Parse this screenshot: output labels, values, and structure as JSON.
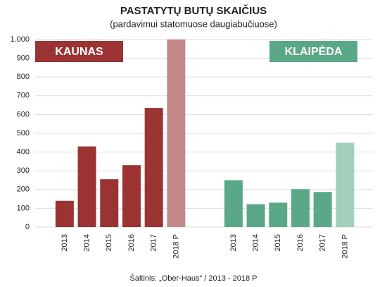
{
  "chart_data": {
    "type": "bar",
    "title": "PASTATYTŲ BUTŲ SKAIČIUS",
    "subtitle": "(pardavimui statomuose daugiabučiuose)",
    "source": "Šaltinis: „Ober-Haus“ / 2013 - 2018 P",
    "ylim": [
      0,
      1000
    ],
    "yticks": [
      0,
      100,
      200,
      300,
      400,
      500,
      600,
      700,
      800,
      900,
      {
        "value": 1000,
        "label": "1.000"
      }
    ],
    "grid": true,
    "groups": [
      {
        "name": "KAUNAS",
        "color": "#9b3333",
        "categories": [
          "2013",
          "2014",
          "2015",
          "2016",
          "2017",
          "2018 P"
        ],
        "values": [
          140,
          430,
          255,
          330,
          635,
          1000
        ],
        "colors": [
          "#9b3333",
          "#9b3333",
          "#9b3333",
          "#9b3333",
          "#9b3333",
          "#c48a8a"
        ]
      },
      {
        "name": "KLAIPĖDA",
        "color": "#5aa887",
        "categories": [
          "2013",
          "2014",
          "2015",
          "2016",
          "2017",
          "2018 P"
        ],
        "values": [
          250,
          122,
          130,
          202,
          187,
          450
        ],
        "colors": [
          "#5aa887",
          "#5aa887",
          "#5aa887",
          "#5aa887",
          "#5aa887",
          "#a3cfbb"
        ]
      }
    ]
  }
}
